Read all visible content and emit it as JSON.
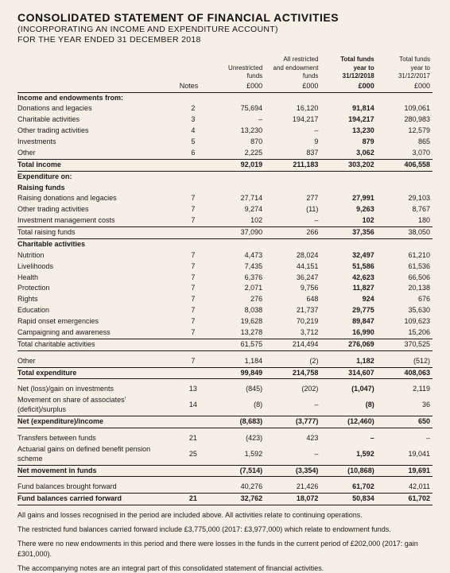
{
  "title": "CONSOLIDATED STATEMENT OF FINANCIAL ACTIVITIES",
  "subtitle1": "(INCORPORATING AN INCOME AND EXPENDITURE ACCOUNT)",
  "subtitle2": "FOR THE YEAR ENDED 31 DECEMBER 2018",
  "columns": {
    "notes_lbl": "Notes",
    "c1": {
      "l1": "",
      "l2": "Unrestricted",
      "l3": "funds",
      "l4": "£000"
    },
    "c2": {
      "l1": "All restricted",
      "l2": "and endowment",
      "l3": "funds",
      "l4": "£000"
    },
    "c3": {
      "l1": "Total funds",
      "l2": "year to",
      "l3": "31/12/2018",
      "l4": "£000",
      "bold": true
    },
    "c4": {
      "l1": "Total funds",
      "l2": "year to",
      "l3": "31/12/2017",
      "l4": "£000"
    }
  },
  "rows": [
    {
      "t": "section",
      "name": "Income and endowments from:"
    },
    {
      "t": "r",
      "name": "Donations and legacies",
      "n": "2",
      "v": [
        "75,694",
        "16,120",
        "91,814",
        "109,061"
      ]
    },
    {
      "t": "r",
      "name": "Charitable activities",
      "n": "3",
      "v": [
        "–",
        "194,217",
        "194,217",
        "280,983"
      ]
    },
    {
      "t": "r",
      "name": "Other trading activities",
      "n": "4",
      "v": [
        "13,230",
        "–",
        "13,230",
        "12,579"
      ]
    },
    {
      "t": "r",
      "name": "Investments",
      "n": "5",
      "v": [
        "870",
        "9",
        "879",
        "865"
      ]
    },
    {
      "t": "r",
      "name": "Other",
      "n": "6",
      "v": [
        "2,225",
        "837",
        "3,062",
        "3,070"
      ],
      "border": "bottom"
    },
    {
      "t": "total",
      "name": "Total income",
      "v": [
        "92,019",
        "211,183",
        "303,202",
        "406,558"
      ],
      "border": "bottom"
    },
    {
      "t": "section",
      "name": "Expenditure on:"
    },
    {
      "t": "subsection",
      "name": "Raising funds"
    },
    {
      "t": "r",
      "name": "Raising donations and legacies",
      "n": "7",
      "v": [
        "27,714",
        "277",
        "27,991",
        "29,103"
      ]
    },
    {
      "t": "r",
      "name": "Other trading activities",
      "n": "7",
      "v": [
        "9,274",
        "(11)",
        "9,263",
        "8,767"
      ]
    },
    {
      "t": "r",
      "name": "Investment management costs",
      "n": "7",
      "v": [
        "102",
        "–",
        "102",
        "180"
      ],
      "border": "bottom"
    },
    {
      "t": "r",
      "name": "Total raising funds",
      "v": [
        "37,090",
        "266",
        "37,356",
        "38,050"
      ],
      "border": "bottom"
    },
    {
      "t": "subsection",
      "name": "Charitable activities"
    },
    {
      "t": "r",
      "name": "Nutrition",
      "n": "7",
      "v": [
        "4,473",
        "28,024",
        "32,497",
        "61,210"
      ]
    },
    {
      "t": "r",
      "name": "Livelihoods",
      "n": "7",
      "v": [
        "7,435",
        "44,151",
        "51,586",
        "61,536"
      ]
    },
    {
      "t": "r",
      "name": "Health",
      "n": "7",
      "v": [
        "6,376",
        "36,247",
        "42,623",
        "66,506"
      ]
    },
    {
      "t": "r",
      "name": "Protection",
      "n": "7",
      "v": [
        "2,071",
        "9,756",
        "11,827",
        "20,138"
      ]
    },
    {
      "t": "r",
      "name": "Rights",
      "n": "7",
      "v": [
        "276",
        "648",
        "924",
        "676"
      ]
    },
    {
      "t": "r",
      "name": "Education",
      "n": "7",
      "v": [
        "8,038",
        "21,737",
        "29,775",
        "35,630"
      ]
    },
    {
      "t": "r",
      "name": "Rapid onset emergencies",
      "n": "7",
      "v": [
        "19,628",
        "70,219",
        "89,847",
        "109,623"
      ]
    },
    {
      "t": "r",
      "name": "Campaigning and awareness",
      "n": "7",
      "v": [
        "13,278",
        "3,712",
        "16,990",
        "15,206"
      ],
      "border": "bottom"
    },
    {
      "t": "r",
      "name": "Total charitable activities",
      "v": [
        "61,575",
        "214,494",
        "276,069",
        "370,525"
      ],
      "border": "bottom"
    },
    {
      "t": "spacer"
    },
    {
      "t": "r",
      "name": "Other",
      "n": "7",
      "v": [
        "1,184",
        "(2)",
        "1,182",
        "(512)"
      ],
      "border": "bottom"
    },
    {
      "t": "total",
      "name": "Total expenditure",
      "v": [
        "99,849",
        "214,758",
        "314,607",
        "408,063"
      ],
      "border": "bottom"
    },
    {
      "t": "spacer"
    },
    {
      "t": "r",
      "name": "Net (loss)/gain on investments",
      "n": "13",
      "v": [
        "(845)",
        "(202)",
        "(1,047)",
        "2,119"
      ]
    },
    {
      "t": "r",
      "name": "Movement on share of associates' (deficit)/surplus",
      "n": "14",
      "v": [
        "(8)",
        "–",
        "(8)",
        "36"
      ],
      "border": "bottom"
    },
    {
      "t": "total",
      "name": "Net (expenditure)/income",
      "v": [
        "(8,683)",
        "(3,777)",
        "(12,460)",
        "650"
      ],
      "border": "bottom"
    },
    {
      "t": "spacer"
    },
    {
      "t": "r",
      "name": "Transfers between funds",
      "n": "21",
      "v": [
        "(423)",
        "423",
        "–",
        "–"
      ]
    },
    {
      "t": "r",
      "name": "Actuarial gains on defined benefit pension scheme",
      "n": "25",
      "v": [
        "1,592",
        "–",
        "1,592",
        "19,041"
      ],
      "border": "bottom"
    },
    {
      "t": "total",
      "name": "Net movement in funds",
      "v": [
        "(7,514)",
        "(3,354)",
        "(10,868)",
        "19,691"
      ],
      "border": "bottom"
    },
    {
      "t": "spacer"
    },
    {
      "t": "r",
      "name": "Fund balances brought forward",
      "v": [
        "40,276",
        "21,426",
        "61,702",
        "42,011"
      ],
      "border": "bottom"
    },
    {
      "t": "total",
      "name": "Fund balances carried forward",
      "n": "21",
      "v": [
        "32,762",
        "18,072",
        "50,834",
        "61,702"
      ],
      "border": "bottom"
    }
  ],
  "footnotes": [
    "All gains and losses recognised in the period are included above. All activities relate to continuing operations.",
    "The restricted fund balances carried forward include £3,775,000 (2017: £3,977,000) which relate to endowment funds.",
    "There were no new endowments in this period and there were losses in the funds in the current period of £202,000 (2017: gain £301,000).",
    "The accompanying notes are an integral part of this consolidated statement of financial activities."
  ]
}
